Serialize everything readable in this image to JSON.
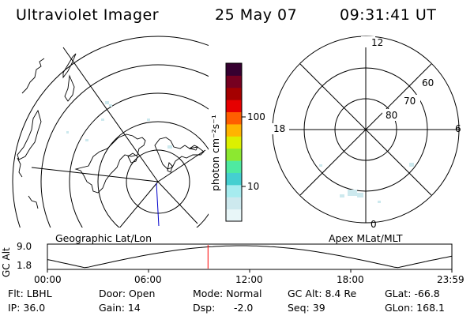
{
  "header": {
    "instrument": "Ultraviolet Imager",
    "date": "25 May 07",
    "time": "09:31:41 UT"
  },
  "colorbar": {
    "unit_label": "photon cm⁻²s⁻¹",
    "tick_100": "100",
    "tick_10": "10",
    "colors": [
      "#e8f6f8",
      "#cde9ee",
      "#a6ecef",
      "#45cfd0",
      "#4eeaa0",
      "#8ce830",
      "#dcf000",
      "#ffb400",
      "#ff5e00",
      "#e60000",
      "#a40000",
      "#760020",
      "#360030"
    ]
  },
  "map": {
    "geographic_label": "Geographic Lat/Lon"
  },
  "polar": {
    "label": "Apex MLat/MLT",
    "mlt_12": "12",
    "mlt_18": "18",
    "mlt_6": "6",
    "mlt_0": "0",
    "lat_60": "60",
    "lat_70": "70",
    "lat_80": "80"
  },
  "timeline": {
    "axis_label": "GC Alt",
    "y_top": "9.0",
    "y_bottom": "1.8",
    "x_ticks": [
      "00:00",
      "06:00",
      "12:00",
      "18:00",
      "23:59"
    ],
    "marker_time_hours": 9.528
  },
  "info": {
    "filter": "Flt: LBHL",
    "ip": "IP: 36.0",
    "door": "Door: Open",
    "gain": "Gain: 14",
    "mode": "Mode: Normal",
    "dsp": "Dsp:",
    "dsp_value": "-2.0",
    "gc_alt": "GC Alt: 8.4 Re",
    "seq": "Seq: 39",
    "glat": "GLat: -66.8",
    "glon": "GLon: 168.1"
  }
}
